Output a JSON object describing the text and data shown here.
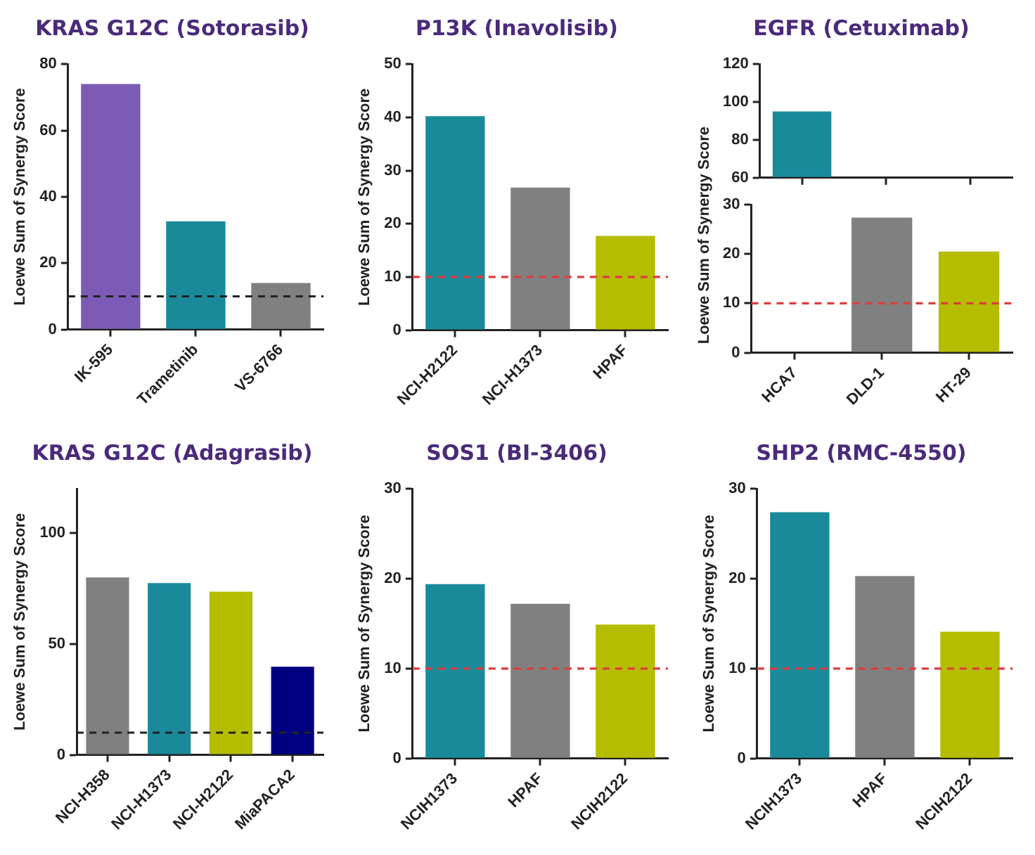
{
  "chart_data": [
    {
      "type": "bar",
      "title": "KRAS G12C (Sotorasib)",
      "ylabel": "Loewe Sum of Synergy Score",
      "categories": [
        "IK-595",
        "Trametinib",
        "VS-6766"
      ],
      "values": [
        74,
        32.6,
        14
      ],
      "colors": [
        "#7b5bb5",
        "#1a8a9a",
        "#808080"
      ],
      "ylim": [
        0,
        80
      ],
      "yticks": [
        0,
        20,
        40,
        60,
        80
      ],
      "ref_lines": [
        {
          "axis": "y",
          "value": 10,
          "color": "#222222",
          "line_style": "dashed"
        }
      ]
    },
    {
      "type": "bar",
      "title": "P13K (Inavolisib)",
      "ylabel": "Loewe Sum of Synergy Score",
      "categories": [
        "NCI-H2122",
        "NCI-H1373",
        "HPAF"
      ],
      "values": [
        40.2,
        26.8,
        17.7
      ],
      "colors": [
        "#1a8a9a",
        "#808080",
        "#b5bd00"
      ],
      "ylim": [
        0,
        50
      ],
      "yticks": [
        0,
        10,
        20,
        30,
        40,
        50
      ],
      "ref_lines": [
        {
          "axis": "y",
          "value": 10,
          "color": "#e03c3c",
          "line_style": "dashed"
        }
      ]
    },
    {
      "type": "bar",
      "title": "EGFR (Cetuximab)",
      "categories": [
        null,
        null,
        null
      ],
      "values": [
        95,
        null,
        null
      ],
      "colors": [
        "#1a8a9a",
        "#808080",
        "#b5bd00"
      ],
      "ylim": [
        60,
        120
      ],
      "yticks": [
        60,
        80,
        100,
        120
      ],
      "tick_labels": "y"
    },
    {
      "type": "bar",
      "ylabel": "Loewe Sum of Synergy Score",
      "categories": [
        "HCA7",
        "DLD-1",
        "HT-29"
      ],
      "values": [
        null,
        27.4,
        20.5
      ],
      "colors": [
        "#1a8a9a",
        "#808080",
        "#b5bd00"
      ],
      "ylim": [
        0,
        30
      ],
      "yticks": [
        0,
        10,
        20,
        30
      ],
      "ref_lines": [
        {
          "axis": "y",
          "value": 10,
          "color": "#e03c3c",
          "line_style": "dashed"
        }
      ]
    },
    {
      "type": "bar",
      "title": "KRAS G12C (Adagrasib)",
      "ylabel": "Loewe Sum of Synergy Score",
      "categories": [
        "NCI-H358",
        "NCI-H1373",
        "NCI-H2122",
        "MiaPACA2"
      ],
      "values": [
        80,
        77.5,
        73.6,
        39.7
      ],
      "colors": [
        "#808080",
        "#1a8a9a",
        "#b5bd00",
        "#000080"
      ],
      "ylim": [
        0,
        120
      ],
      "yticks": [
        0,
        50,
        100
      ],
      "ref_lines": [
        {
          "axis": "y",
          "value": 10,
          "color": "#222222",
          "line_style": "dashed"
        }
      ]
    },
    {
      "type": "bar",
      "title": "SOS1 (BI-3406)",
      "ylabel": "Loewe Sum of Synergy Score",
      "categories": [
        "NCIH1373",
        "HPAF",
        "NCIH2122"
      ],
      "values": [
        19.4,
        17.2,
        14.9
      ],
      "colors": [
        "#1a8a9a",
        "#808080",
        "#b5bd00"
      ],
      "ylim": [
        0,
        30
      ],
      "yticks": [
        0,
        10,
        20,
        30
      ],
      "ref_lines": [
        {
          "axis": "y",
          "value": 10,
          "color": "#e03c3c",
          "line_style": "dashed"
        }
      ]
    },
    {
      "type": "bar",
      "title": "SHP2 (RMC-4550)",
      "ylabel": "Loewe Sum of Synergy Score",
      "categories": [
        "NCIH1373",
        "HPAF",
        "NCIH2122"
      ],
      "values": [
        27.4,
        20.3,
        14.1
      ],
      "colors": [
        "#1a8a9a",
        "#808080",
        "#b5bd00"
      ],
      "ylim": [
        0,
        30
      ],
      "yticks": [
        0,
        10,
        20,
        30
      ],
      "ref_lines": [
        {
          "axis": "y",
          "value": 10,
          "color": "#e03c3c",
          "line_style": "dashed"
        }
      ]
    }
  ]
}
